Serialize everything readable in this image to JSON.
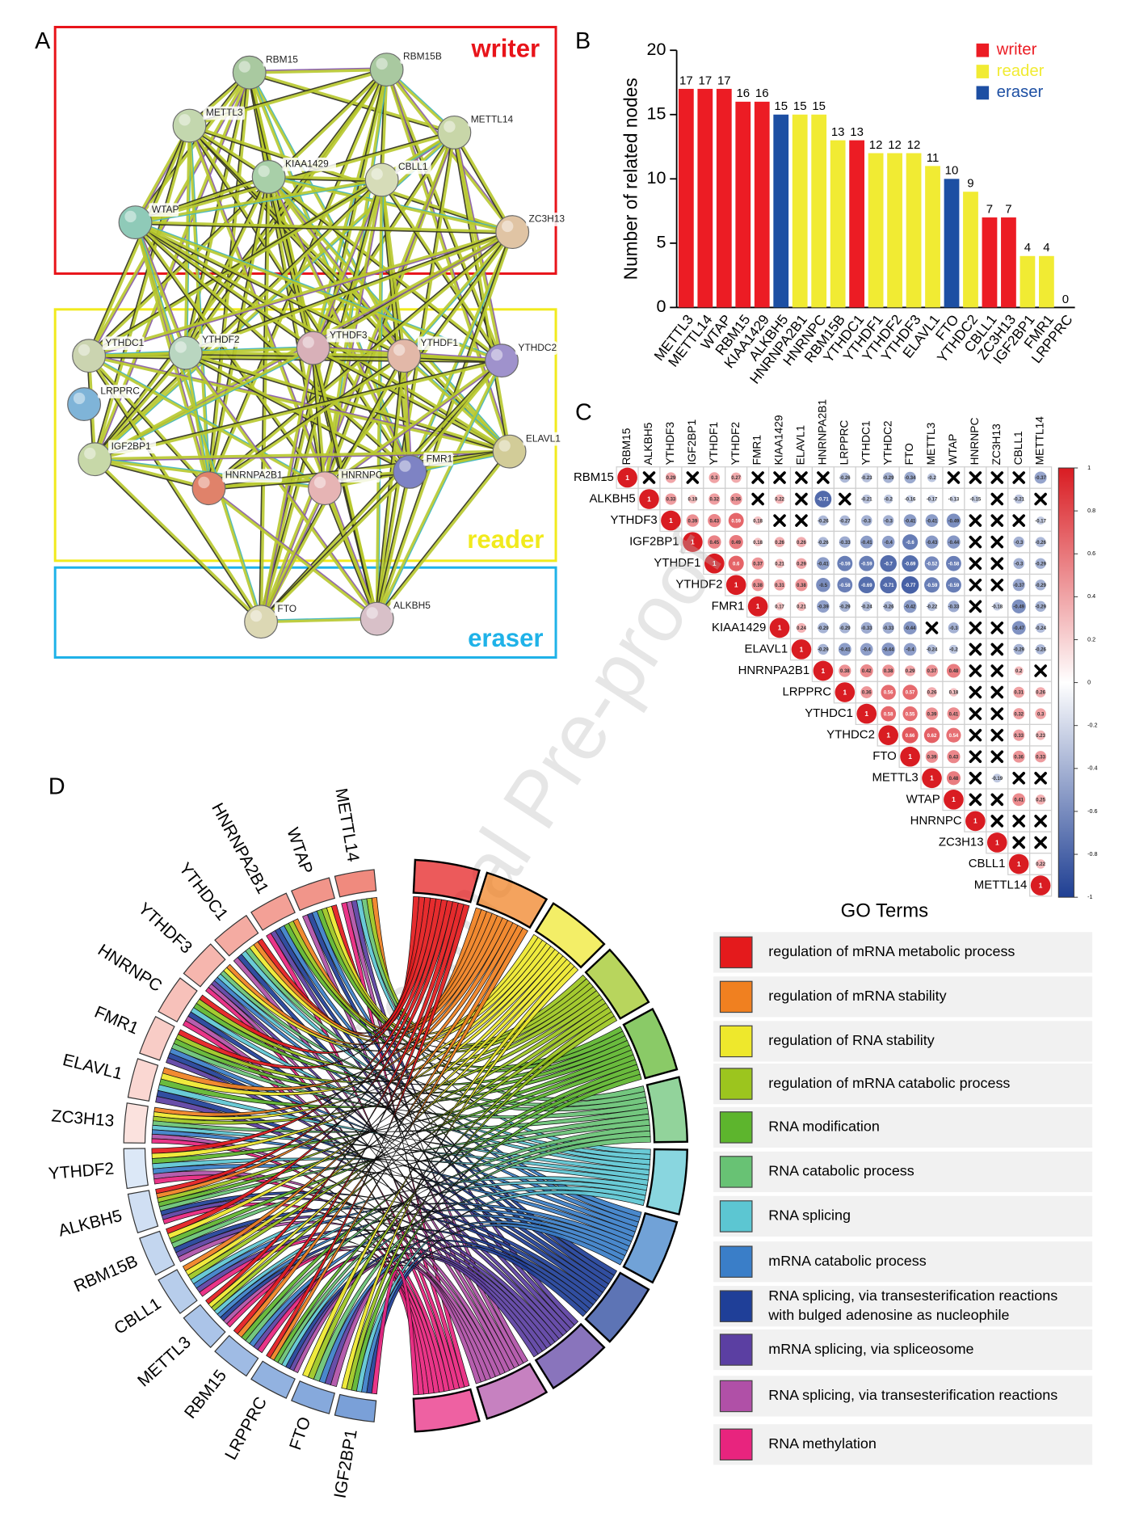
{
  "watermark": "Journal Pre-proof",
  "network": {
    "panel": "A",
    "groups": [
      {
        "label": "writer"
      },
      {
        "label": "reader"
      },
      {
        "label": "eraser"
      }
    ],
    "nodes": [
      {
        "label": "RBM15"
      },
      {
        "label": "RBM15B"
      },
      {
        "label": "METTL3"
      },
      {
        "label": "METTL14"
      },
      {
        "label": "KIAA1429"
      },
      {
        "label": "CBLL1"
      },
      {
        "label": "WTAP"
      },
      {
        "label": "ZC3H13"
      },
      {
        "label": "YTHDC1"
      },
      {
        "label": "YTHDF2"
      },
      {
        "label": "YTHDF3"
      },
      {
        "label": "YTHDF1"
      },
      {
        "label": "YTHDC2"
      },
      {
        "label": "LRPPRC"
      },
      {
        "label": "ELAVL1"
      },
      {
        "label": "IGF2BP1"
      },
      {
        "label": "HNRNPA2B1"
      },
      {
        "label": "HNRNPC"
      },
      {
        "label": "FMR1"
      },
      {
        "label": "FTO"
      },
      {
        "label": "ALKBH5"
      }
    ]
  },
  "chart_data": [
    {
      "type": "bar",
      "panel": "B",
      "ylabel": "Number of related nodes",
      "categories": [
        "METTL3",
        "METTL14",
        "WTAP",
        "RBM15",
        "KIAA1429",
        "ALKBH5",
        "HNRNPA2B1",
        "HNRNPC",
        "RBM15B",
        "YTHDC1",
        "YTHDF1",
        "YTHDF2",
        "YTHDF3",
        "ELAVL1",
        "FTO",
        "YTHDC2",
        "CBLL1",
        "ZC3H13",
        "IGF2BP1",
        "FMR1",
        "LRPPRC"
      ],
      "values": [
        17,
        17,
        17,
        16,
        16,
        15,
        15,
        15,
        13,
        13,
        12,
        12,
        12,
        11,
        10,
        9,
        7,
        7,
        4,
        4,
        0
      ],
      "colors": [
        "#ec1c24",
        "#ec1c24",
        "#ec1c24",
        "#ec1c24",
        "#ec1c24",
        "#1d4fa3",
        "#f1eb33",
        "#f1eb33",
        "#f1eb33",
        "#ec1c24",
        "#f1eb33",
        "#f1eb33",
        "#f1eb33",
        "#f1eb33",
        "#1d4fa3",
        "#f1eb33",
        "#ec1c24",
        "#ec1c24",
        "#f1eb33",
        "#f1eb33",
        "#f1eb33"
      ],
      "legend": [
        {
          "name": "writer",
          "color": "#ec1c24"
        },
        {
          "name": "reader",
          "color": "#f1eb33"
        },
        {
          "name": "eraser",
          "color": "#1d4fa3"
        }
      ],
      "ylim": [
        0,
        20
      ],
      "yticks": [
        0,
        5,
        10,
        15,
        20
      ]
    },
    {
      "type": "correlation",
      "panel": "C",
      "labels": [
        "RBM15",
        "ALKBH5",
        "YTHDF3",
        "IGF2BP1",
        "YTHDF1",
        "YTHDF2",
        "FMR1",
        "KIAA1429",
        "ELAVL1",
        "HNRNPA2B1",
        "LRPPRC",
        "YTHDC1",
        "YTHDC2",
        "FTO",
        "METTL3",
        "WTAP",
        "HNRNPC",
        "ZC3H13",
        "CBLL1",
        "METTL14"
      ],
      "matrix": [
        [
          1,
          null,
          0.29,
          null,
          0.3,
          0.27,
          null,
          null,
          null,
          null,
          -0.26,
          -0.23,
          -0.29,
          -0.34,
          -0.2,
          null,
          null,
          null,
          null,
          -0.37
        ],
        [
          1,
          0.33,
          0.19,
          0.32,
          0.36,
          null,
          0.22,
          null,
          -0.71,
          null,
          -0.21,
          -0.2,
          -0.16,
          -0.17,
          -0.13,
          -0.15,
          null,
          -0.21,
          null
        ],
        [
          1,
          0.39,
          0.43,
          0.59,
          0.18,
          null,
          null,
          -0.26,
          -0.27,
          -0.3,
          -0.3,
          -0.41,
          -0.41,
          -0.49,
          null,
          null,
          null,
          -0.17
        ],
        [
          1,
          0.45,
          0.49,
          0.18,
          0.26,
          0.26,
          -0.26,
          -0.33,
          -0.41,
          -0.4,
          -0.6,
          -0.43,
          -0.44,
          null,
          null,
          -0.3,
          -0.26
        ],
        [
          1,
          0.6,
          0.37,
          0.21,
          0.29,
          -0.41,
          -0.59,
          -0.59,
          -0.7,
          -0.69,
          -0.52,
          -0.58,
          null,
          null,
          -0.3,
          -0.29
        ],
        [
          1,
          0.38,
          0.31,
          0.38,
          -0.5,
          -0.58,
          -0.69,
          -0.71,
          -0.77,
          -0.59,
          -0.59,
          null,
          null,
          -0.37,
          -0.29
        ],
        [
          1,
          0.17,
          0.21,
          -0.39,
          -0.29,
          -0.24,
          -0.26,
          -0.42,
          -0.22,
          -0.33,
          null,
          -0.18,
          -0.49,
          -0.29
        ],
        [
          1,
          0.24,
          -0.29,
          -0.29,
          -0.33,
          -0.33,
          -0.44,
          null,
          -0.3,
          null,
          null,
          -0.47,
          -0.24
        ],
        [
          1,
          -0.29,
          -0.41,
          -0.4,
          -0.44,
          -0.4,
          -0.24,
          -0.2,
          null,
          null,
          -0.29,
          -0.26
        ],
        [
          1,
          0.38,
          0.42,
          0.38,
          0.29,
          0.37,
          0.48,
          null,
          null,
          0.2,
          null
        ],
        [
          1,
          0.36,
          0.56,
          0.57,
          0.26,
          0.18,
          null,
          null,
          0.31,
          0.26
        ],
        [
          1,
          0.58,
          0.55,
          0.39,
          0.41,
          null,
          null,
          0.32,
          0.3
        ],
        [
          1,
          0.66,
          0.62,
          0.54,
          null,
          null,
          0.33,
          0.23
        ],
        [
          1,
          0.39,
          0.43,
          null,
          null,
          0.36,
          0.33
        ],
        [
          1,
          0.48,
          null,
          -0.19,
          null,
          null
        ],
        [
          1,
          null,
          null,
          0.41,
          0.25
        ],
        [
          1,
          null,
          null,
          null
        ],
        [
          1,
          null,
          null
        ],
        [
          1,
          0.22
        ],
        [
          1
        ]
      ],
      "clim": [
        -1,
        1
      ],
      "cticks": [
        1,
        0.8,
        0.6,
        0.4,
        0.2,
        0,
        -0.2,
        -0.4,
        -0.6,
        -0.8,
        -1
      ]
    }
  ],
  "chord": {
    "panel": "D",
    "genes": [
      "METTL14",
      "WTAP",
      "HNRNPA2B1",
      "YTHDC1",
      "YTHDF3",
      "HNRNPC",
      "FMR1",
      "ELAVL1",
      "ZC3H13",
      "YTHDF2",
      "ALKBH5",
      "RBM15B",
      "CBLL1",
      "METTL3",
      "RBM15",
      "LRPPRC",
      "FTO",
      "IGF2BP1"
    ],
    "legend_title": "GO Terms",
    "go_terms": [
      {
        "lines": [
          "regulation of mRNA metabolic process"
        ],
        "color": "#e41a1c"
      },
      {
        "lines": [
          "regulation of mRNA stability"
        ],
        "color": "#f08020"
      },
      {
        "lines": [
          "regulation of RNA stability"
        ],
        "color": "#eee82c"
      },
      {
        "lines": [
          "regulation of mRNA catabolic process"
        ],
        "color": "#9cc51e"
      },
      {
        "lines": [
          "RNA modification"
        ],
        "color": "#5db52d"
      },
      {
        "lines": [
          "RNA catabolic process"
        ],
        "color": "#68c274"
      },
      {
        "lines": [
          "RNA splicing"
        ],
        "color": "#5cc6d2"
      },
      {
        "lines": [
          "mRNA catabolic process"
        ],
        "color": "#3a7ec8"
      },
      {
        "lines": [
          "RNA splicing, via transesterification reactions",
          "with bulged adenosine as nucleophile"
        ],
        "color": "#1f3f98"
      },
      {
        "lines": [
          "mRNA splicing, via spliceosome"
        ],
        "color": "#5b3fa2"
      },
      {
        "lines": [
          "RNA splicing, via transesterification reactions"
        ],
        "color": "#b050a7"
      },
      {
        "lines": [
          "RNA methylation"
        ],
        "color": "#e8247e"
      }
    ]
  }
}
